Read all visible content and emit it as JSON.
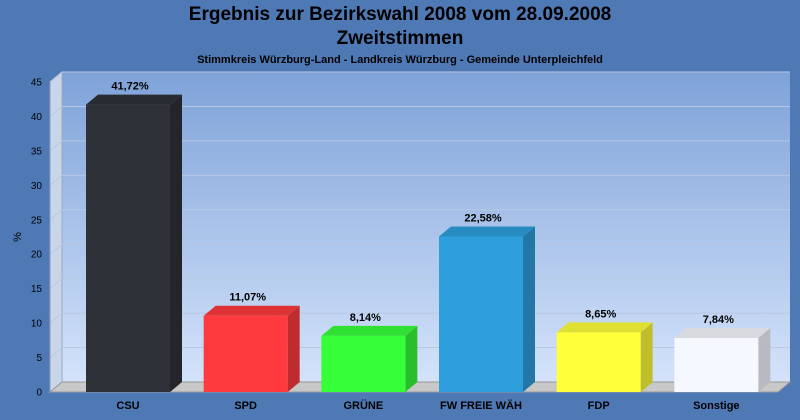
{
  "title": "Ergebnis zur Bezirkswahl 2008 vom 28.09.2008",
  "subtitle": "Zweitstimmen",
  "caption": "Stimmkreis Würzburg-Land - Landkreis Würzburg - Gemeinde Unterpleichfeld",
  "chart_data": {
    "type": "bar",
    "title": "Ergebnis zur Bezirkswahl 2008 vom 28.09.2008",
    "subtitle": "Zweitstimmen",
    "ylabel": "%",
    "xlabel": "",
    "ylim": [
      0,
      45
    ],
    "yticks": [
      0,
      5,
      10,
      15,
      20,
      25,
      30,
      35,
      40,
      45
    ],
    "grid": true,
    "categories": [
      "CSU",
      "SPD",
      "GRÜNE",
      "FW FREIE WÄH",
      "FDP",
      "Sonstige"
    ],
    "values": [
      41.72,
      11.07,
      8.14,
      22.58,
      8.65,
      7.84
    ],
    "data_labels": [
      "41,72%",
      "11,07%",
      "8,14%",
      "22,58%",
      "8,65%",
      "7,84%"
    ],
    "colors": [
      "#2e3138",
      "#ff3a3e",
      "#36ff3a",
      "#2e9fdc",
      "#ffff3a",
      "#f6f8ff"
    ]
  }
}
